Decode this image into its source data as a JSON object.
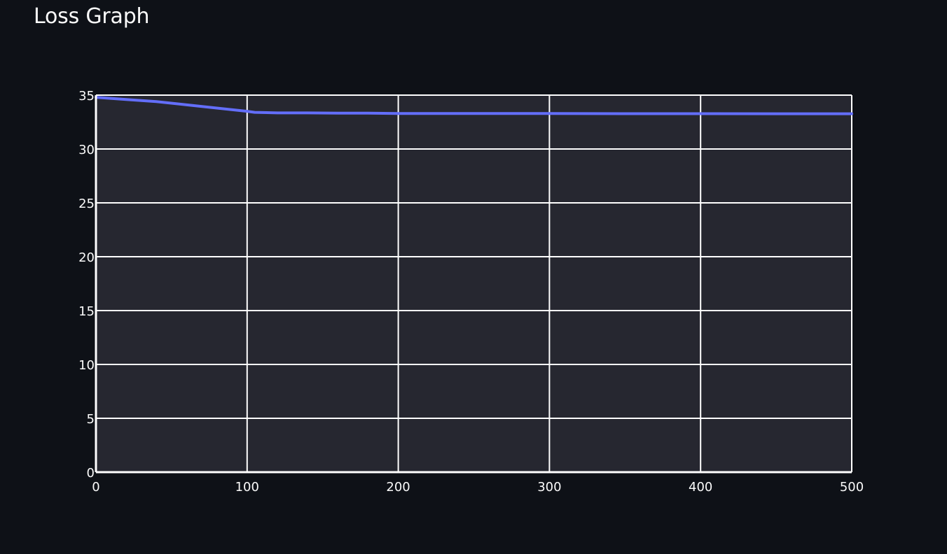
{
  "page": {
    "title": "Loss Graph"
  },
  "colors": {
    "background": "#0e1117",
    "plot_background": "#262730",
    "grid": "#ffffff",
    "series": "#636efa",
    "text": "#fafafa"
  },
  "chart_data": {
    "type": "line",
    "title": "Loss Graph",
    "xlabel": "",
    "ylabel": "",
    "xlim": [
      0,
      500
    ],
    "ylim": [
      0,
      35
    ],
    "x_ticks": [
      0,
      100,
      200,
      300,
      400,
      500
    ],
    "y_ticks": [
      0,
      5,
      10,
      15,
      20,
      25,
      30,
      35
    ],
    "grid": true,
    "legend": "none",
    "series": [
      {
        "x": [
          0,
          20,
          40,
          60,
          80,
          100,
          105,
          120,
          140,
          160,
          180,
          200,
          250,
          300,
          350,
          400,
          450,
          500
        ],
        "y": [
          34.8,
          34.6,
          34.4,
          34.1,
          33.8,
          33.5,
          33.4,
          33.35,
          33.35,
          33.33,
          33.33,
          33.3,
          33.3,
          33.3,
          33.28,
          33.28,
          33.27,
          33.27
        ]
      }
    ]
  }
}
